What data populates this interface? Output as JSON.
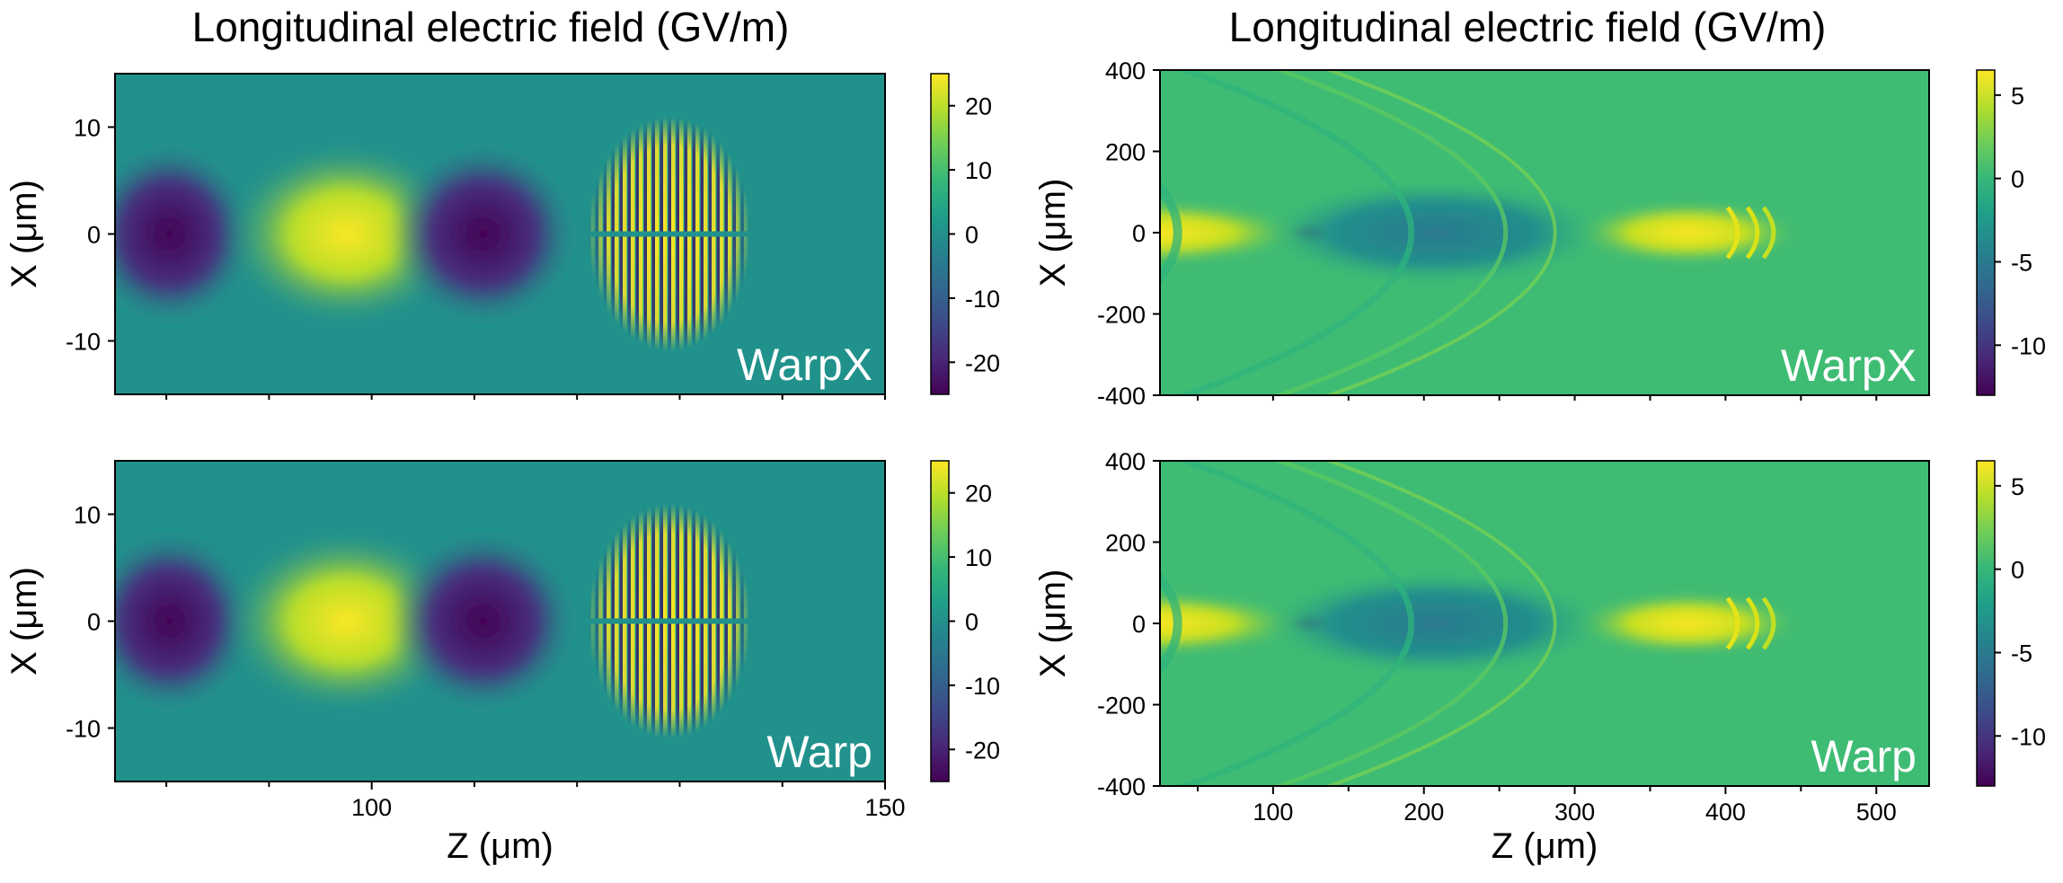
{
  "colors": {
    "viridis": [
      "#440154",
      "#482878",
      "#3e4a89",
      "#31688e",
      "#26828e",
      "#1f9e89",
      "#35b779",
      "#6dcd59",
      "#b4de2c",
      "#fde725"
    ]
  },
  "chart_data": [
    {
      "type": "heatmap",
      "id": "left-top",
      "title": "Longitudinal electric field (GV/m)",
      "xlabel": "",
      "ylabel": "X (μm)",
      "xlim": [
        75,
        150
      ],
      "ylim": [
        -15,
        15
      ],
      "x_ticks": [],
      "y_ticks": [
        10,
        0,
        -10
      ],
      "colorbar": {
        "range": [
          -25,
          25
        ],
        "ticks": [
          20,
          10,
          0,
          -10,
          -20
        ]
      },
      "code_label": "WarpX",
      "features": [
        {
          "kind": "lobe",
          "z": [
            75,
            85
          ],
          "value": -22,
          "note": "negative field, left edge"
        },
        {
          "kind": "lobe",
          "z": [
            90,
            104
          ],
          "value": 22,
          "note": "positive field"
        },
        {
          "kind": "lobe",
          "z": [
            105,
            116
          ],
          "value": -22,
          "note": "negative field"
        },
        {
          "kind": "laser",
          "z": [
            121,
            137
          ],
          "x": [
            -11,
            11
          ],
          "amplitude": 25,
          "note": "laser pulse, split at X=0"
        }
      ]
    },
    {
      "type": "heatmap",
      "id": "left-bottom",
      "title": "",
      "xlabel": "Z (μm)",
      "ylabel": "X (μm)",
      "xlim": [
        75,
        150
      ],
      "ylim": [
        -15,
        15
      ],
      "x_ticks": [
        100,
        150
      ],
      "y_ticks": [
        10,
        0,
        -10
      ],
      "colorbar": {
        "range": [
          -25,
          25
        ],
        "ticks": [
          20,
          10,
          0,
          -10,
          -20
        ]
      },
      "code_label": "Warp",
      "features": [
        {
          "kind": "lobe",
          "z": [
            75,
            85
          ],
          "value": -22
        },
        {
          "kind": "lobe",
          "z": [
            90,
            104
          ],
          "value": 22
        },
        {
          "kind": "lobe",
          "z": [
            105,
            116
          ],
          "value": -22
        },
        {
          "kind": "laser",
          "z": [
            121,
            137
          ],
          "x": [
            -11,
            11
          ],
          "amplitude": 25
        }
      ]
    },
    {
      "type": "heatmap",
      "id": "right-top",
      "title": "Longitudinal electric field (GV/m)",
      "xlabel": "",
      "ylabel": "X (μm)",
      "xlim": [
        25,
        535
      ],
      "ylim": [
        -400,
        400
      ],
      "x_ticks": [],
      "y_ticks": [
        400,
        200,
        0,
        -200,
        -400
      ],
      "colorbar": {
        "range": [
          -13,
          6.5
        ],
        "ticks": [
          5,
          0,
          -5,
          -10
        ]
      },
      "code_label": "WarpX",
      "features": [
        {
          "kind": "lobe",
          "z": [
            25,
            110
          ],
          "value": 5.5,
          "note": "positive field on axis"
        },
        {
          "kind": "spike",
          "z": 115,
          "value": -13
        },
        {
          "kind": "lobe",
          "z": [
            115,
            300
          ],
          "value": -5,
          "note": "negative field"
        },
        {
          "kind": "lobe",
          "z": [
            300,
            425
          ],
          "value": 5.5,
          "note": "positive field with rings"
        },
        {
          "kind": "arcs",
          "vertex_z": 430,
          "note": "curved wake rings"
        }
      ]
    },
    {
      "type": "heatmap",
      "id": "right-bottom",
      "title": "",
      "xlabel": "Z (μm)",
      "ylabel": "X (μm)",
      "xlim": [
        25,
        535
      ],
      "ylim": [
        -400,
        400
      ],
      "x_ticks": [
        100,
        200,
        300,
        400,
        500
      ],
      "y_ticks": [
        400,
        200,
        0,
        -200,
        -400
      ],
      "colorbar": {
        "range": [
          -13,
          6.5
        ],
        "ticks": [
          5,
          0,
          -5,
          -10
        ]
      },
      "code_label": "Warp",
      "features": [
        {
          "kind": "lobe",
          "z": [
            25,
            110
          ],
          "value": 5.5
        },
        {
          "kind": "spike",
          "z": 115,
          "value": -13
        },
        {
          "kind": "lobe",
          "z": [
            115,
            300
          ],
          "value": -5
        },
        {
          "kind": "lobe",
          "z": [
            300,
            425
          ],
          "value": 5.5
        },
        {
          "kind": "arcs",
          "vertex_z": 430
        }
      ]
    }
  ]
}
